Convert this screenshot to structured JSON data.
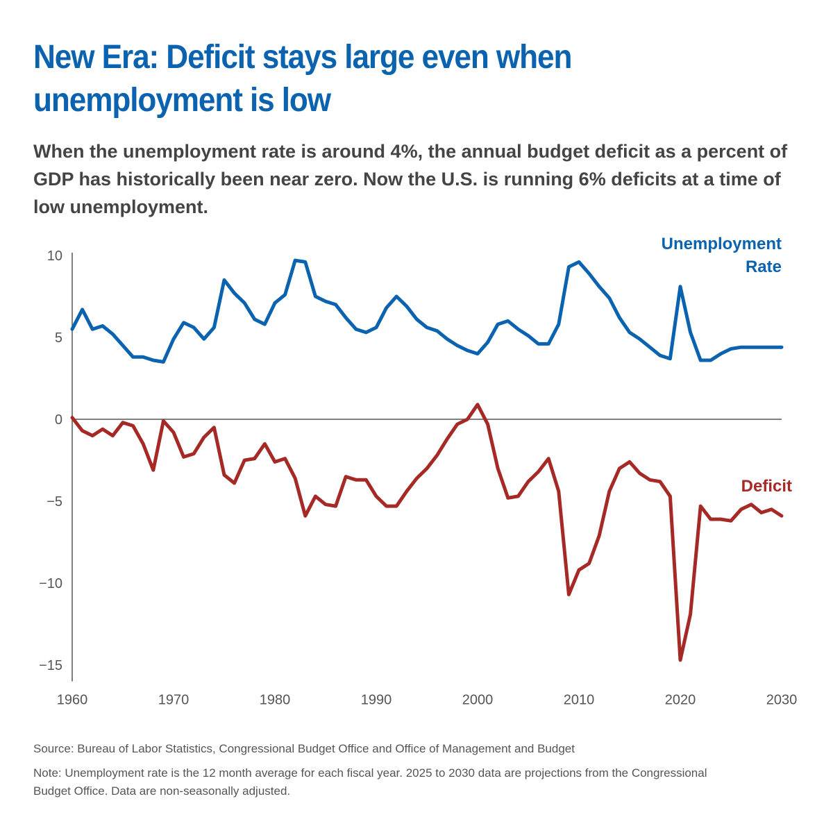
{
  "title": "New Era: Deficit stays large even when unemployment is low",
  "subtitle": "When the unemployment rate is around 4%, the annual budget deficit as a percent of GDP has historically been near zero. Now the U.S. is running 6% deficits at a time of low unemployment.",
  "source": "Source: Bureau of Labor Statistics, Congressional Budget Office and Office of Management and Budget",
  "note": "Note: Unemployment rate is the 12 month average for each fiscal year. 2025 to 2030 data are projections from the Congressional Budget Office. Data are non-seasonally adjusted.",
  "colors": {
    "unemployment": "#0b63b0",
    "deficit": "#a52a26",
    "title": "#0b63b0",
    "text": "#444444",
    "axis": "#555555"
  },
  "chart_data": {
    "type": "line",
    "title": "New Era: Deficit stays large even when unemployment is low",
    "xlabel": "",
    "ylabel": "",
    "xlim": [
      1960,
      2030
    ],
    "ylim": [
      -16,
      10
    ],
    "x_ticks": [
      1960,
      1970,
      1980,
      1990,
      2000,
      2010,
      2020,
      2030
    ],
    "y_ticks": [
      10,
      5,
      0,
      -5,
      -10,
      -15
    ],
    "y_tick_labels": [
      "10",
      "5",
      "0",
      "−5",
      "−10",
      "−15"
    ],
    "grid": false,
    "legend": "direct labels at series ends",
    "x": [
      1960,
      1961,
      1962,
      1963,
      1964,
      1965,
      1966,
      1967,
      1968,
      1969,
      1970,
      1971,
      1972,
      1973,
      1974,
      1975,
      1976,
      1977,
      1978,
      1979,
      1980,
      1981,
      1982,
      1983,
      1984,
      1985,
      1986,
      1987,
      1988,
      1989,
      1990,
      1991,
      1992,
      1993,
      1994,
      1995,
      1996,
      1997,
      1998,
      1999,
      2000,
      2001,
      2002,
      2003,
      2004,
      2005,
      2006,
      2007,
      2008,
      2009,
      2010,
      2011,
      2012,
      2013,
      2014,
      2015,
      2016,
      2017,
      2018,
      2019,
      2020,
      2021,
      2022,
      2023,
      2024,
      2025,
      2026,
      2027,
      2028,
      2029,
      2030
    ],
    "series": [
      {
        "name": "Unemployment Rate",
        "label_lines": [
          "Unemployment",
          "Rate"
        ],
        "color": "#0b63b0",
        "values": [
          5.5,
          6.7,
          5.5,
          5.7,
          5.2,
          4.5,
          3.8,
          3.8,
          3.6,
          3.5,
          4.9,
          5.9,
          5.6,
          4.9,
          5.6,
          8.5,
          7.7,
          7.1,
          6.1,
          5.8,
          7.1,
          7.6,
          9.7,
          9.6,
          7.5,
          7.2,
          7.0,
          6.2,
          5.5,
          5.3,
          5.6,
          6.8,
          7.5,
          6.9,
          6.1,
          5.6,
          5.4,
          4.9,
          4.5,
          4.2,
          4.0,
          4.7,
          5.8,
          6.0,
          5.5,
          5.1,
          4.6,
          4.6,
          5.8,
          9.3,
          9.6,
          8.9,
          8.1,
          7.4,
          6.2,
          5.3,
          4.9,
          4.4,
          3.9,
          3.7,
          8.1,
          5.3,
          3.6,
          3.6,
          4.0,
          4.3,
          4.4,
          4.4,
          4.4,
          4.4,
          4.4
        ]
      },
      {
        "name": "Deficit",
        "label_lines": [
          "Deficit"
        ],
        "color": "#a52a26",
        "values": [
          0.1,
          -0.7,
          -1.0,
          -0.6,
          -1.0,
          -0.2,
          -0.4,
          -1.5,
          -3.1,
          -0.1,
          -0.8,
          -2.3,
          -2.1,
          -1.1,
          -0.5,
          -3.4,
          -3.9,
          -2.5,
          -2.4,
          -1.5,
          -2.6,
          -2.4,
          -3.6,
          -5.9,
          -4.7,
          -5.2,
          -5.3,
          -3.5,
          -3.7,
          -3.7,
          -4.7,
          -5.3,
          -5.3,
          -4.4,
          -3.6,
          -3.0,
          -2.2,
          -1.2,
          -0.3,
          0.0,
          0.9,
          -0.3,
          -3.0,
          -4.8,
          -4.7,
          -3.8,
          -3.2,
          -2.4,
          -4.4,
          -10.7,
          -9.2,
          -8.8,
          -7.1,
          -4.4,
          -3.0,
          -2.6,
          -3.3,
          -3.7,
          -3.8,
          -4.7,
          -14.7,
          -11.9,
          -5.3,
          -6.1,
          -6.1,
          -6.2,
          -5.5,
          -5.2,
          -5.7,
          -5.5,
          -5.9
        ]
      }
    ]
  }
}
